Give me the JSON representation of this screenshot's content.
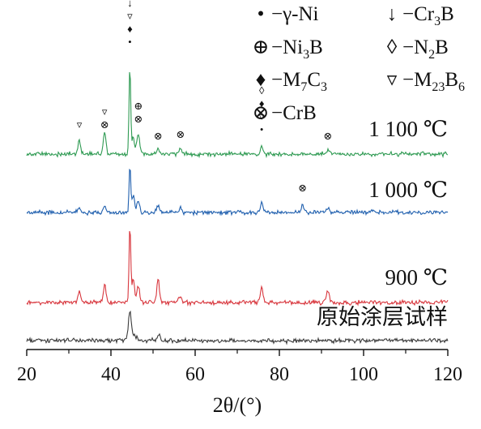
{
  "chart_data": {
    "type": "line",
    "xlabel": "2θ/(°)",
    "ylabel": "",
    "xlim": [
      20,
      120
    ],
    "x_ticks": [
      "20",
      "40",
      "60",
      "80",
      "100",
      "120"
    ],
    "grid": false,
    "legend_position": "top-right",
    "legend": [
      {
        "symbol": "•",
        "label": "−γ-Ni"
      },
      {
        "symbol": "↓",
        "label": "−Cr",
        "sub": "3",
        "tail": "B"
      },
      {
        "symbol": "⊕",
        "label": "−Ni",
        "sub": "3",
        "tail": "B"
      },
      {
        "symbol": "◊",
        "label": "−N",
        "sub": "2",
        "tail": "B"
      },
      {
        "symbol": "♦",
        "label": "−M",
        "sub": "7",
        "tail": "C",
        "sub2": "3"
      },
      {
        "symbol": "▿",
        "label": "−M",
        "sub": "23",
        "tail": "B",
        "sub2": "6"
      },
      {
        "symbol": "⊗",
        "label": "−CrB"
      }
    ],
    "series": [
      {
        "name": "1 100 ℃",
        "color": "#2e9a52",
        "peaks": [
          [
            32.5,
            16
          ],
          [
            38.5,
            28
          ],
          [
            44.5,
            108
          ],
          [
            45.3,
            20
          ],
          [
            46.5,
            26
          ],
          [
            51.2,
            6
          ],
          [
            56.5,
            7
          ],
          [
            75.8,
            10
          ],
          [
            91.5,
            4
          ]
        ]
      },
      {
        "name": "1 000 ℃",
        "color": "#1f5fae",
        "peaks": [
          [
            32.5,
            6
          ],
          [
            38.5,
            8
          ],
          [
            44.5,
            58
          ],
          [
            45.3,
            20
          ],
          [
            46.5,
            14
          ],
          [
            51.2,
            10
          ],
          [
            56.5,
            6
          ],
          [
            75.8,
            12
          ],
          [
            85.5,
            9
          ],
          [
            91.5,
            5
          ]
        ]
      },
      {
        "name": "900 ℃",
        "color": "#d8363d",
        "peaks": [
          [
            32.5,
            14
          ],
          [
            38.5,
            22
          ],
          [
            44.5,
            95
          ],
          [
            45.3,
            30
          ],
          [
            46.5,
            20
          ],
          [
            51.2,
            28
          ],
          [
            56.5,
            8
          ],
          [
            75.8,
            20
          ],
          [
            91.5,
            14
          ]
        ]
      },
      {
        "name": "原始涂层试样",
        "color": "#3a3a3a",
        "peaks": [
          [
            44.5,
            30
          ],
          [
            51.5,
            8
          ]
        ]
      }
    ],
    "annotations": [
      {
        "x": 44.5,
        "symbols": [
          "↓",
          "▿",
          "♦",
          "•"
        ]
      },
      {
        "x": 32.5,
        "symbols": [
          "▿"
        ]
      },
      {
        "x": 38.5,
        "symbols": [
          "▿",
          "⊗"
        ]
      },
      {
        "x": 46.5,
        "symbols": [
          "⊕",
          "⊗"
        ]
      },
      {
        "x": 51.2,
        "symbols": [
          "⊗"
        ]
      },
      {
        "x": 56.5,
        "symbols": [
          "⊗"
        ]
      },
      {
        "x": 75.8,
        "symbols": [
          "◊",
          "♦",
          "▿",
          "•"
        ]
      },
      {
        "x": 91.5,
        "symbols": [
          "⊗"
        ]
      },
      {
        "x": 85.5,
        "symbols": [
          "⊗"
        ]
      }
    ]
  }
}
